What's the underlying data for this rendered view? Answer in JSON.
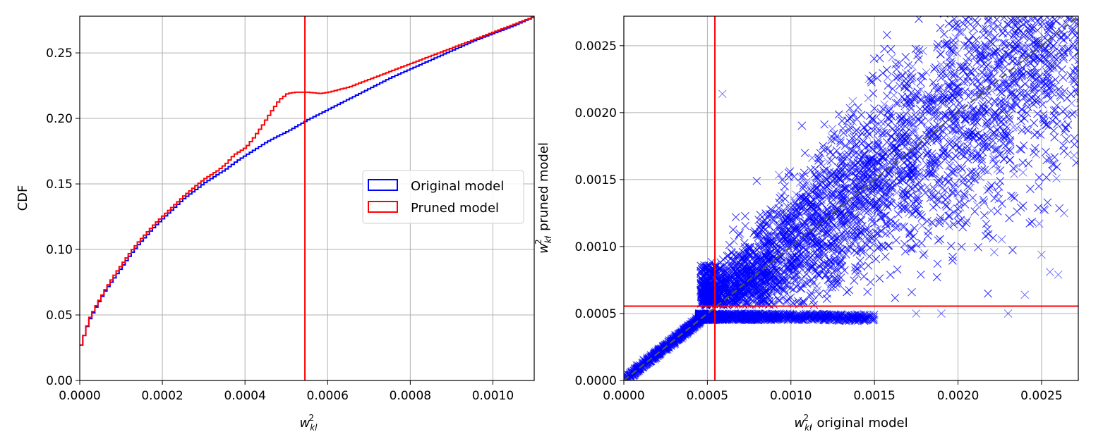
{
  "colors": {
    "original": "#0000ff",
    "pruned": "#ff0000",
    "threshold": "#ff0000",
    "diagonal": "#555555",
    "grid": "#b0b0b0"
  },
  "chart_data": [
    {
      "type": "line",
      "chart_style": "step (cumulative histogram)",
      "title": "",
      "xlabel": "w_kl^2",
      "ylabel": "CDF",
      "xlim": [
        0.0,
        0.0011
      ],
      "ylim": [
        0.0,
        0.278
      ],
      "xticks": [
        "0.0000",
        "0.0002",
        "0.0004",
        "0.0006",
        "0.0008",
        "0.0010"
      ],
      "yticks": [
        "0.00",
        "0.05",
        "0.10",
        "0.15",
        "0.20",
        "0.25"
      ],
      "grid": true,
      "legend": {
        "position": "center-right",
        "entries": [
          "Original model",
          "Pruned model"
        ]
      },
      "threshold_x": 0.000545,
      "series": [
        {
          "name": "Original model",
          "color": "#0000ff",
          "x": [
            0.0,
            1e-05,
            2e-05,
            4e-05,
            6e-05,
            8e-05,
            0.0001,
            0.00012,
            0.00014,
            0.00016,
            0.00018,
            0.0002,
            0.00022,
            0.00025,
            0.00028,
            0.0003,
            0.00033,
            0.00035,
            0.00038,
            0.0004,
            0.00043,
            0.00045,
            0.00048,
            0.0005,
            0.00055,
            0.0006,
            0.00065,
            0.0007,
            0.00075,
            0.0008,
            0.00085,
            0.0009,
            0.00095,
            0.001,
            0.00105,
            0.0011
          ],
          "y": [
            0.027,
            0.037,
            0.046,
            0.058,
            0.069,
            0.078,
            0.087,
            0.096,
            0.104,
            0.111,
            0.118,
            0.124,
            0.13,
            0.139,
            0.146,
            0.151,
            0.157,
            0.161,
            0.168,
            0.172,
            0.178,
            0.182,
            0.187,
            0.19,
            0.199,
            0.207,
            0.215,
            0.223,
            0.231,
            0.238,
            0.245,
            0.252,
            0.259,
            0.265,
            0.271,
            0.278
          ]
        },
        {
          "name": "Pruned model",
          "color": "#ff0000",
          "x": [
            0.0,
            1e-05,
            2e-05,
            4e-05,
            6e-05,
            8e-05,
            0.0001,
            0.00012,
            0.00014,
            0.00016,
            0.00018,
            0.0002,
            0.00022,
            0.00025,
            0.00028,
            0.0003,
            0.00033,
            0.00035,
            0.00037,
            0.0004,
            0.00042,
            0.00044,
            0.00046,
            0.00048,
            0.0005,
            0.00052,
            0.00055,
            0.00058,
            0.0006,
            0.00065,
            0.0007,
            0.00075,
            0.0008,
            0.00085,
            0.0009,
            0.00095,
            0.001,
            0.00105,
            0.0011
          ],
          "y": [
            0.027,
            0.037,
            0.047,
            0.059,
            0.07,
            0.08,
            0.089,
            0.098,
            0.106,
            0.113,
            0.12,
            0.126,
            0.132,
            0.141,
            0.149,
            0.154,
            0.16,
            0.165,
            0.172,
            0.178,
            0.186,
            0.195,
            0.205,
            0.214,
            0.219,
            0.22,
            0.22,
            0.219,
            0.22,
            0.224,
            0.23,
            0.236,
            0.242,
            0.248,
            0.254,
            0.26,
            0.266,
            0.272,
            0.278
          ]
        }
      ]
    },
    {
      "type": "scatter",
      "title": "",
      "xlabel": "w_kl^2, original model",
      "ylabel": "w_kl^2, pruned model",
      "xlim": [
        0.0,
        0.00272
      ],
      "ylim": [
        0.0,
        0.00272
      ],
      "xticks": [
        "0.0000",
        "0.0005",
        "0.0010",
        "0.0015",
        "0.0020",
        "0.0025"
      ],
      "yticks": [
        "0.0000",
        "0.0005",
        "0.0010",
        "0.0015",
        "0.0020",
        "0.0025"
      ],
      "grid": true,
      "marker": "x",
      "marker_color": "#0000ff",
      "diagonal_line": "y = x (dashed gray)",
      "threshold_x": 0.000545,
      "threshold_y": 0.000555,
      "series": [
        {
          "regions": [
            {
              "description": "tight band along y=x",
              "x_range": [
                0.0,
                0.00045
              ],
              "y": "approximately equal to x"
            },
            {
              "description": "flat band just below threshold",
              "x_range": [
                0.00045,
                0.0015
              ],
              "y_range": [
                0.00043,
                0.0005
              ]
            },
            {
              "description": "dense cloud around diagonal",
              "x_range": [
                0.00045,
                0.00272
              ],
              "y_range": [
                0.00055,
                0.00272
              ]
            }
          ],
          "sample_outliers": [
            {
              "x": 0.00059,
              "y": 0.00214
            },
            {
              "x": 0.0024,
              "y": 0.00064
            },
            {
              "x": 0.0023,
              "y": 0.0005
            },
            {
              "x": 0.0026,
              "y": 0.00079
            },
            {
              "x": 0.0025,
              "y": 0.00094
            },
            {
              "x": 0.00255,
              "y": 0.00081
            },
            {
              "x": 0.0019,
              "y": 0.0005
            },
            {
              "x": 0.00175,
              "y": 0.0005
            }
          ]
        }
      ]
    }
  ]
}
